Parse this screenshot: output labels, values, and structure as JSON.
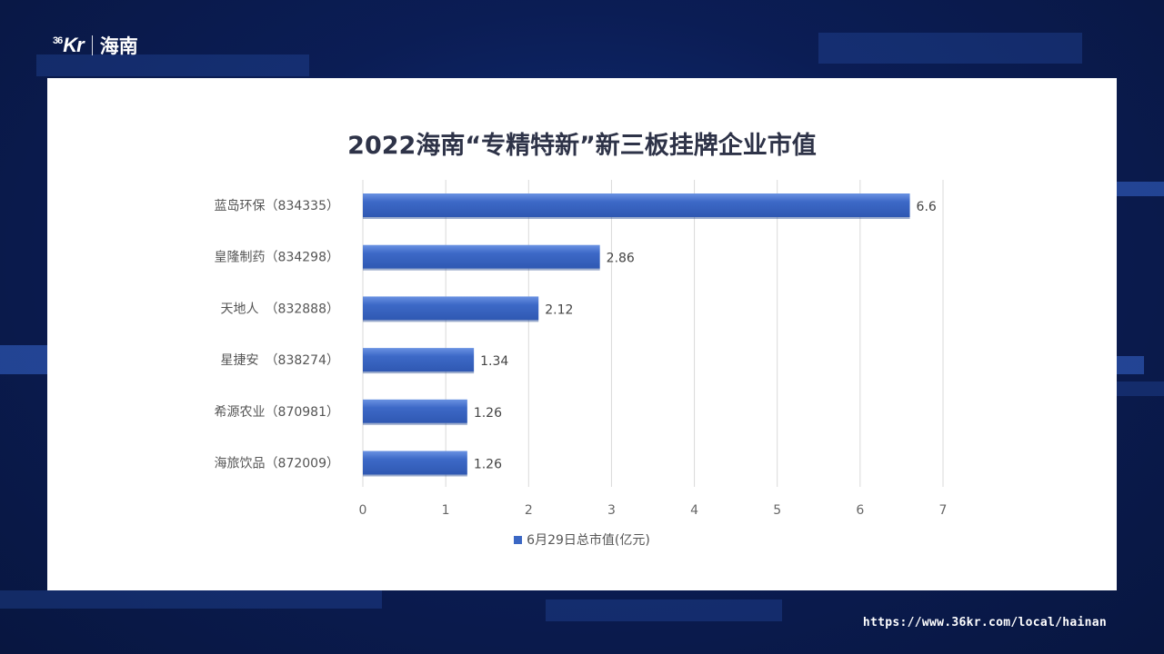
{
  "brand": {
    "logo_mark": "36Kr",
    "logo_mark_main": "Kr",
    "logo_mark_sup": "36",
    "logo_region": "海南"
  },
  "footer": {
    "url": "https://www.36kr.com/local/hainan"
  },
  "colors": {
    "bar_fill": "#3b67c4",
    "bar_top": "#5f88dc",
    "grid": "#d9d9d9",
    "background": "#0a1a4a"
  },
  "chart_data": {
    "type": "bar",
    "orientation": "horizontal",
    "title": "2022海南“专精特新”新三板挂牌企业市值",
    "categories": [
      "蓝岛环保（834335）",
      "皇隆制药（834298）",
      "天地人　（832888）",
      "星捷安　（838274）",
      "希源农业（870981）",
      "海旅饮品（872009）"
    ],
    "series": [
      {
        "name": "6月29日总市值(亿元)",
        "values": [
          6.6,
          2.86,
          2.12,
          1.34,
          1.26,
          1.26
        ],
        "labels": [
          "6.6",
          "2.86",
          "2.12",
          "1.34",
          "1.26",
          "1.26"
        ]
      }
    ],
    "xlim": [
      0,
      7
    ],
    "xticks": [
      "0",
      "1",
      "2",
      "3",
      "4",
      "5",
      "6",
      "7"
    ],
    "xlabel": "",
    "ylabel": "",
    "grid": true,
    "legend_position": "bottom-center"
  }
}
